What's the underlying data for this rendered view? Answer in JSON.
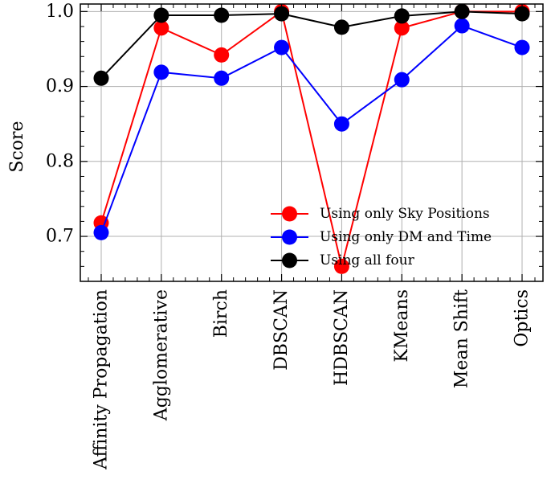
{
  "chart_data": {
    "type": "line",
    "title": "",
    "xlabel": "",
    "ylabel": "Score",
    "categories": [
      "Affinity Propagation",
      "Agglomerative",
      "Birch",
      "DBSCAN",
      "HDBSCAN",
      "KMeans",
      "Mean Shift",
      "Optics"
    ],
    "ylim": [
      0.64,
      1.01
    ],
    "yticks": [
      0.7,
      0.8,
      0.9,
      1.0
    ],
    "ytick_labels": [
      "0.7",
      "0.8",
      "0.9",
      "1.0"
    ],
    "grid": true,
    "legend_position": "lower-right",
    "series": [
      {
        "name": "Using only Sky Positions",
        "color": "#ff0000",
        "values": [
          0.718,
          0.978,
          0.942,
          1.0,
          0.66,
          0.978,
          1.0,
          1.0
        ]
      },
      {
        "name": "Using only DM and Time",
        "color": "#0000ff",
        "values": [
          0.705,
          0.919,
          0.911,
          0.952,
          0.85,
          0.909,
          0.981,
          0.952
        ]
      },
      {
        "name": "Using all four",
        "color": "#000000",
        "values": [
          0.911,
          0.995,
          0.995,
          0.997,
          0.979,
          0.994,
          1.0,
          0.997
        ]
      }
    ]
  }
}
